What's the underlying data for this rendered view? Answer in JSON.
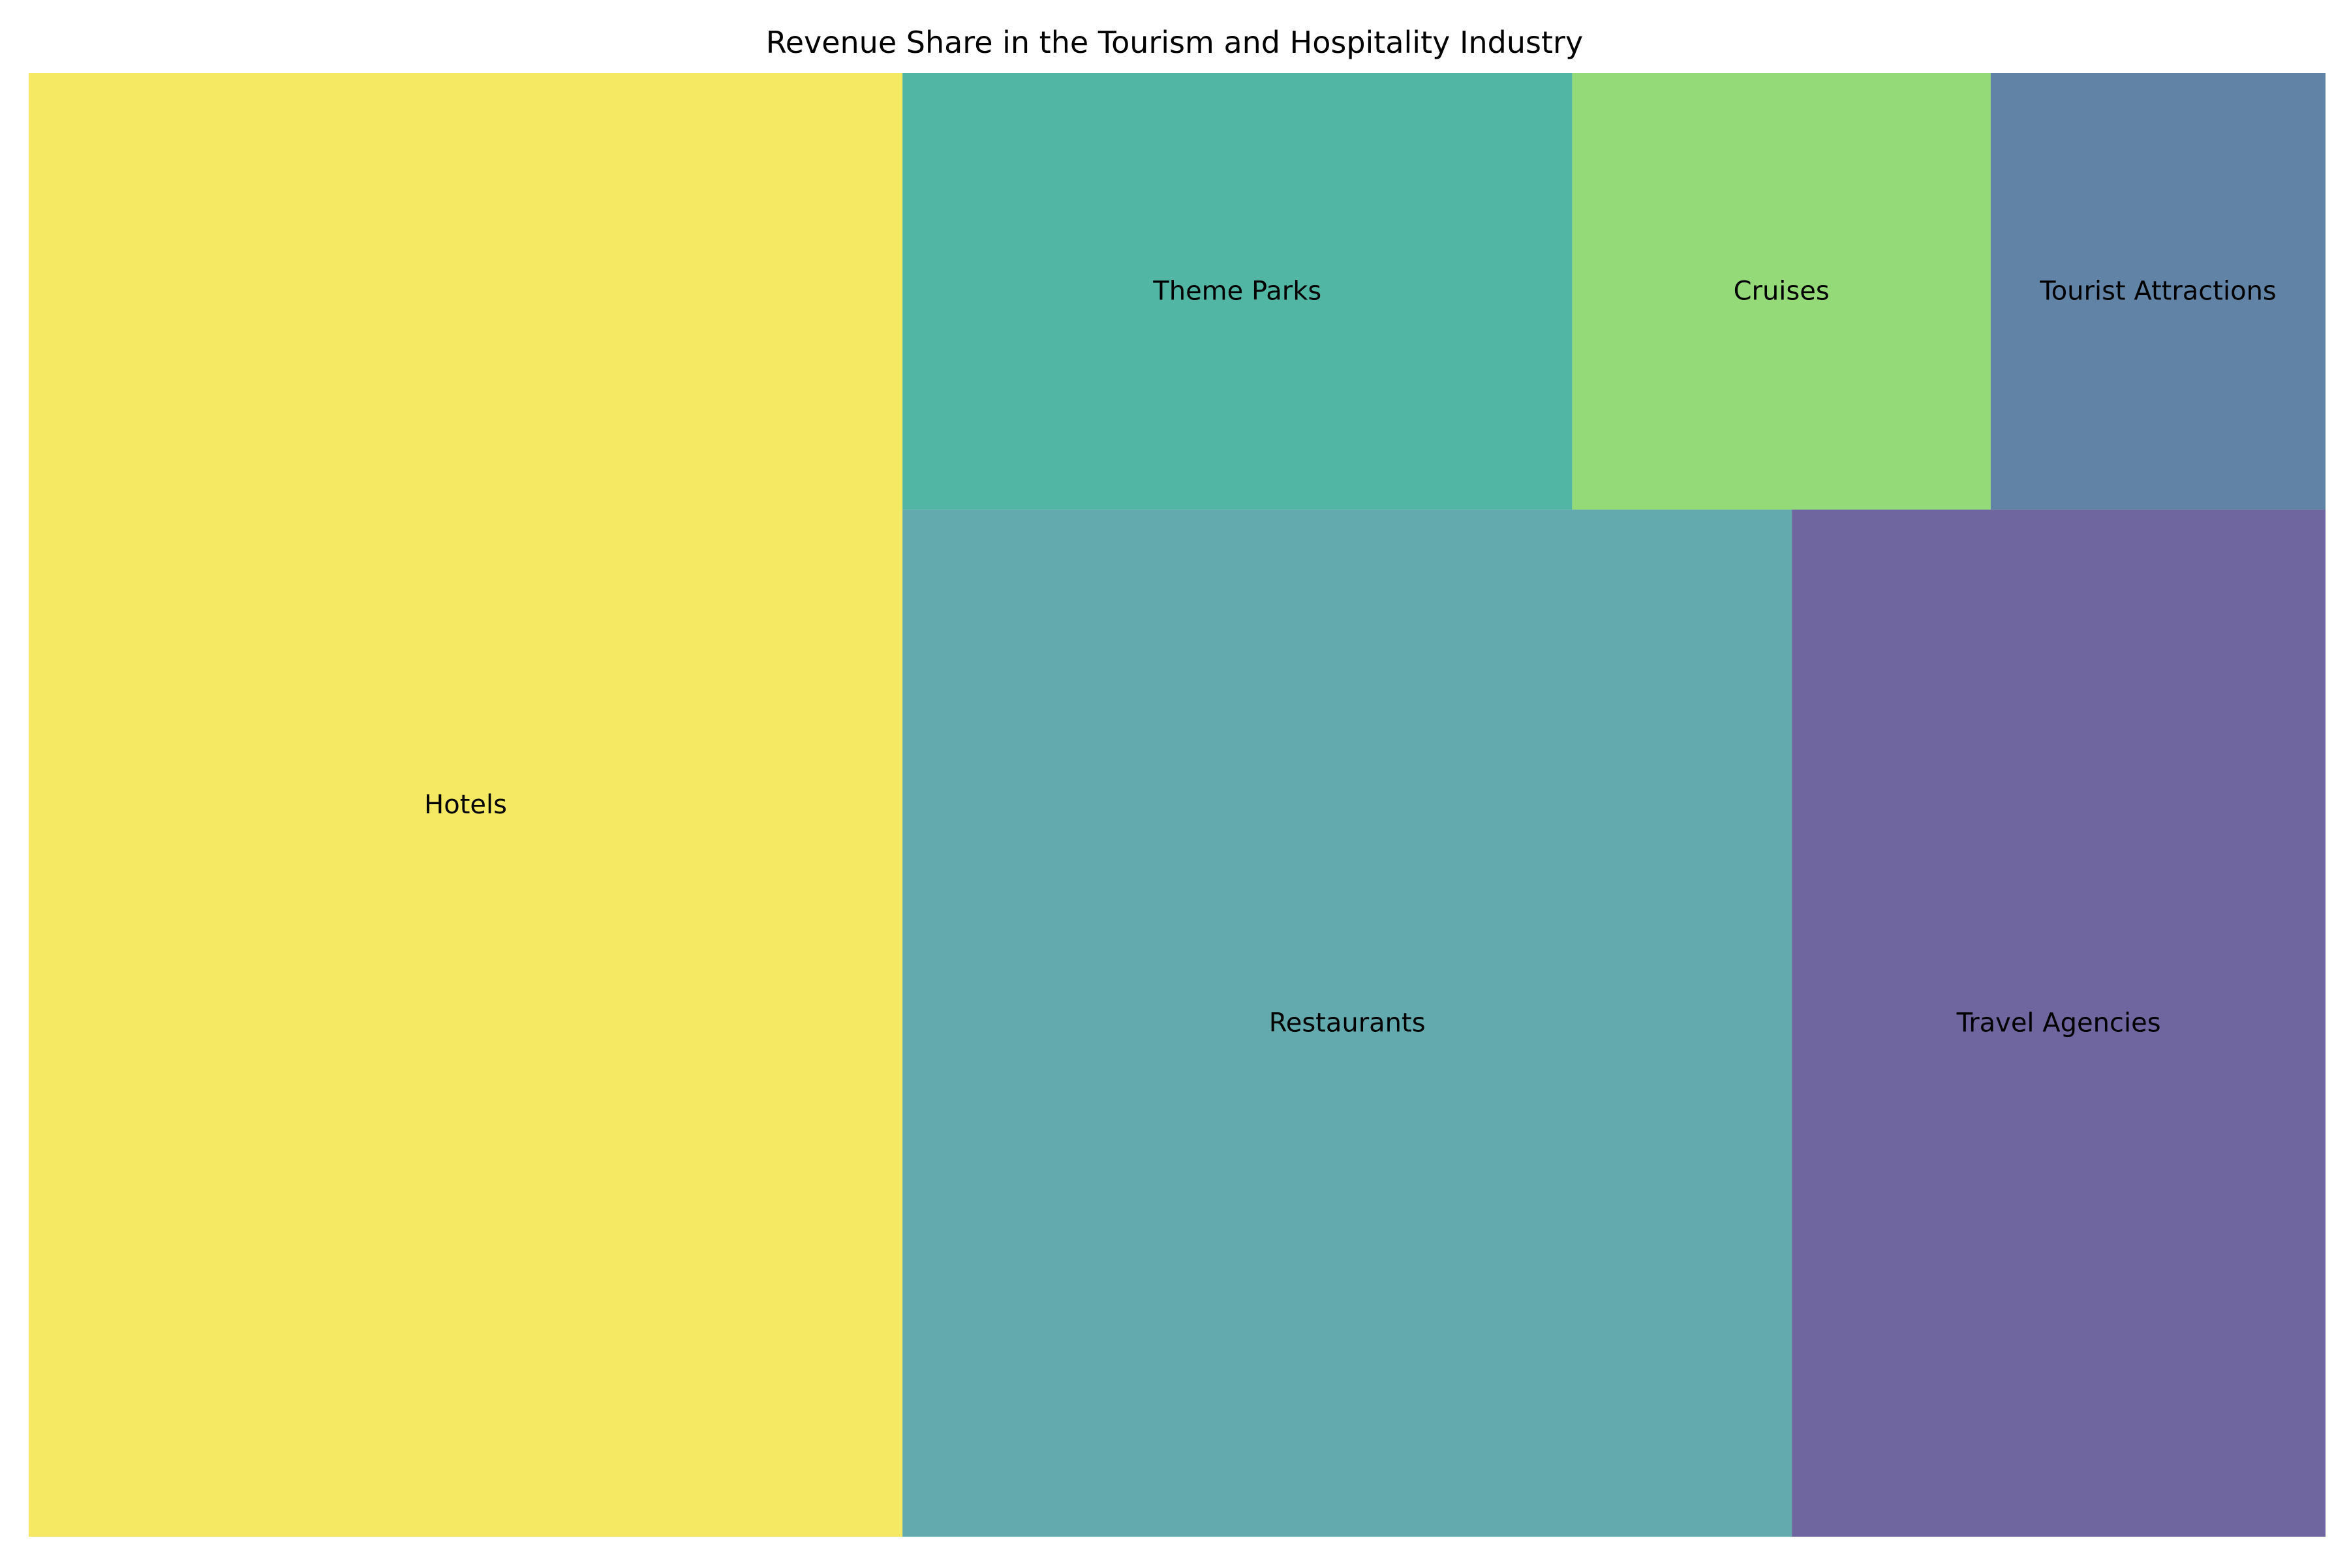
{
  "chart_data": {
    "type": "treemap",
    "title": "Revenue Share in the Tourism and Hospitality Industry",
    "items": [
      {
        "label": "Hotels",
        "share": 35,
        "color": "#f3e33c"
      },
      {
        "label": "Restaurants",
        "share": 25,
        "color": "#3b9598"
      },
      {
        "label": "Travel Agencies",
        "share": 15,
        "color": "#4b3f87"
      },
      {
        "label": "Theme Parks",
        "share": 8,
        "color": "#27a48f"
      },
      {
        "label": "Cruises",
        "share": 5,
        "color": "#7bd158"
      },
      {
        "label": "Tourist Attractions",
        "share": 4,
        "color": "#3a6590"
      }
    ],
    "alpha": 0.8,
    "axes": "off",
    "legend": "none"
  }
}
